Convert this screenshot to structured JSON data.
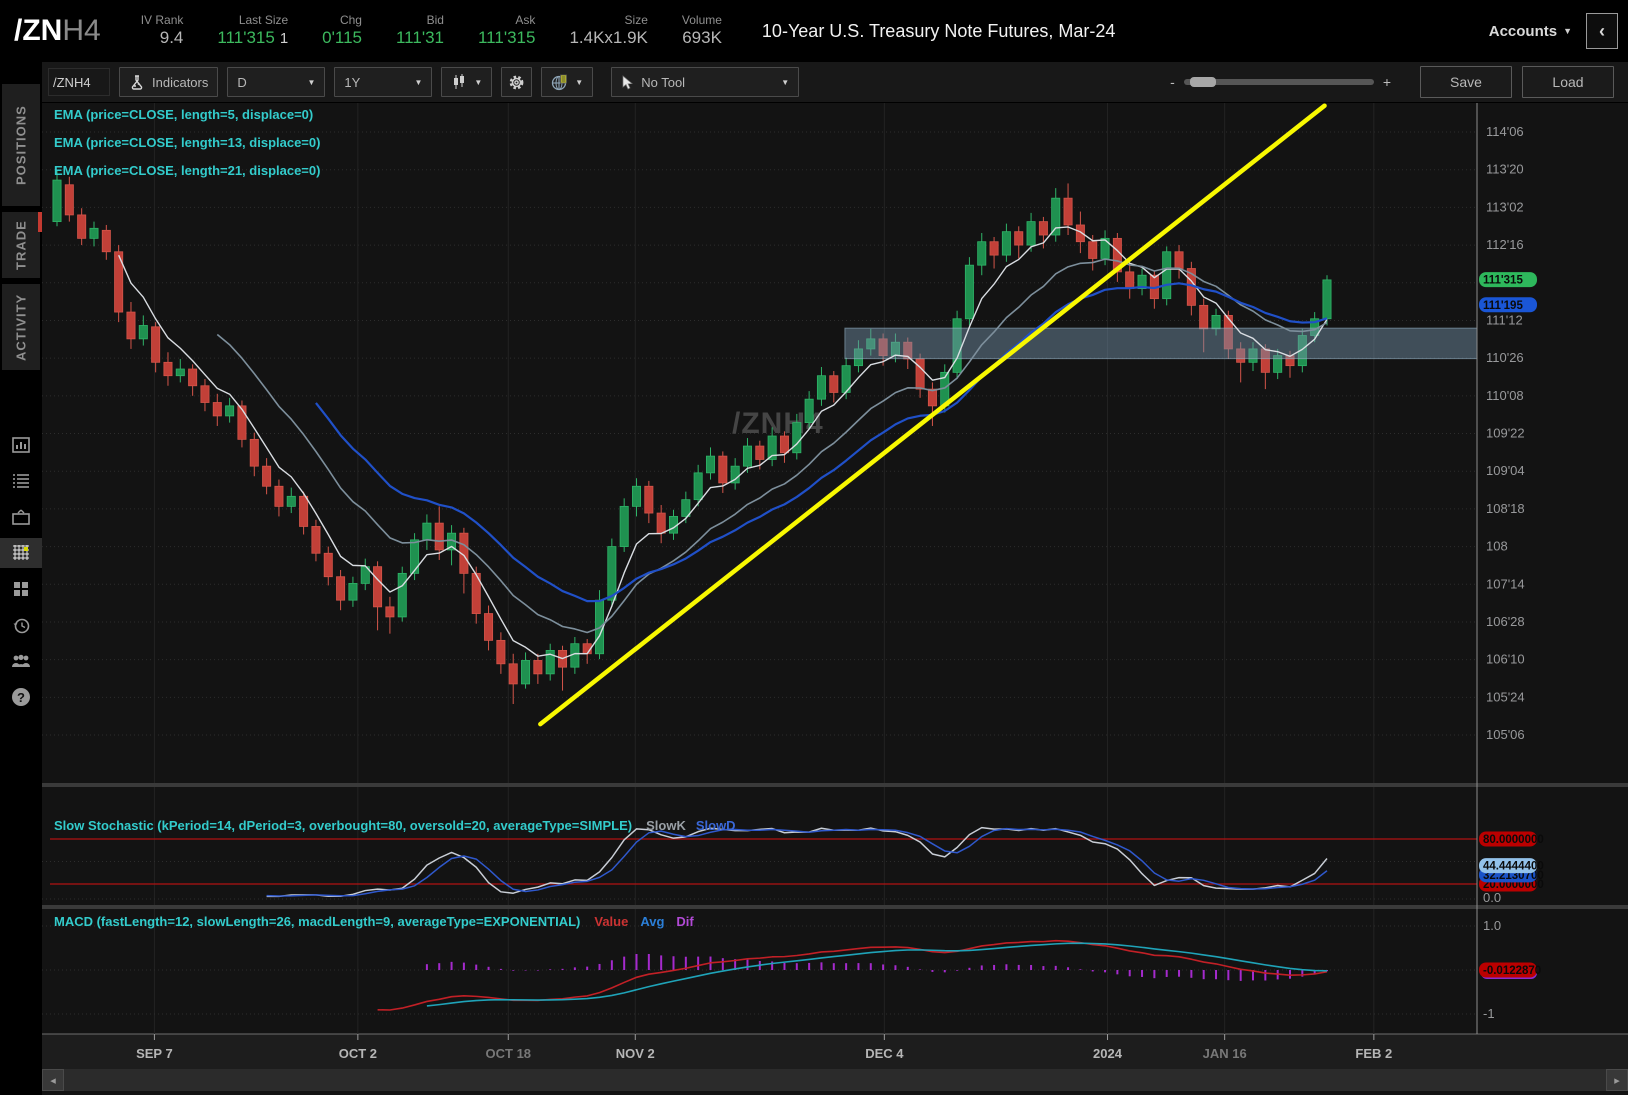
{
  "header": {
    "symbol": "/ZN",
    "symbol_suffix": "H4",
    "stats": [
      {
        "label": "IV Rank",
        "value": "9.4",
        "green": false
      },
      {
        "label": "Last Size",
        "value": "111'315",
        "extra": "1",
        "green": true
      },
      {
        "label": "Chg",
        "value": "0'115",
        "green": true
      },
      {
        "label": "Bid",
        "value": "111'31",
        "green": true
      },
      {
        "label": "Ask",
        "value": "111'315",
        "green": true
      },
      {
        "label": "Size",
        "value": "1.4Kx1.9K",
        "green": false
      },
      {
        "label": "Volume",
        "value": "693K",
        "green": false
      }
    ],
    "title": "10-Year U.S. Treasury Note Futures, Mar-24",
    "accounts_label": "Accounts",
    "collapse_glyph": "‹"
  },
  "sidebar": {
    "tabs": [
      "POSITIONS",
      "TRADE",
      "ACTIVITY"
    ],
    "help_glyph": "?"
  },
  "toolbar": {
    "symbol_input": "/ZNH4",
    "indicators_label": "Indicators",
    "timeframe": "D",
    "range": "1Y",
    "tool_label": "No Tool",
    "zoom_minus": "-",
    "zoom_plus": "+",
    "save_label": "Save",
    "load_label": "Load"
  },
  "scrollbar": {
    "left_glyph": "◂",
    "right_glyph": "▸"
  },
  "chart_data": {
    "type": "candlestick",
    "symbol": "/ZNH4",
    "watermark": "/ZNH4",
    "y_axis_min": 105.1875,
    "y_axis_max": 114.1875,
    "y_axis_step": 0.5625,
    "y_axis": [
      {
        "text": "114'06",
        "value": 114.1875
      },
      {
        "text": "113'20",
        "value": 113.625
      },
      {
        "text": "113'02",
        "value": 113.0625
      },
      {
        "text": "112'16",
        "value": 112.5
      },
      {
        "text": "111'12",
        "value": 111.375
      },
      {
        "text": "110'26",
        "value": 110.8125
      },
      {
        "text": "110'08",
        "value": 110.25
      },
      {
        "text": "109'22",
        "value": 109.6875
      },
      {
        "text": "109'04",
        "value": 109.125
      },
      {
        "text": "108'18",
        "value": 108.5625
      },
      {
        "text": "108",
        "value": 108.0
      },
      {
        "text": "107'14",
        "value": 107.4375
      },
      {
        "text": "106'28",
        "value": 106.875
      },
      {
        "text": "106'10",
        "value": 106.3125
      },
      {
        "text": "105'24",
        "value": 105.75
      },
      {
        "text": "105'06",
        "value": 105.1875
      }
    ],
    "x_labels": [
      {
        "text": "SEP 7",
        "i": 7.9,
        "dim": false
      },
      {
        "text": "OCT 2",
        "i": 24.4,
        "dim": false
      },
      {
        "text": "OCT 18",
        "i": 36.6,
        "dim": true
      },
      {
        "text": "NOV 2",
        "i": 46.9,
        "dim": false
      },
      {
        "text": "DEC 4",
        "i": 67.1,
        "dim": false
      },
      {
        "text": "2024",
        "i": 85.2,
        "dim": false
      },
      {
        "text": "JAN 16",
        "i": 94.7,
        "dim": true
      },
      {
        "text": "FEB 2",
        "i": 106.8,
        "dim": false
      }
    ],
    "last_price_badges": [
      {
        "text": "111'315",
        "value": 111.984,
        "bg": "#2eb85c"
      },
      {
        "text": "111'195",
        "value": 111.609,
        "bg": "#1a56d6"
      }
    ],
    "emas": [
      {
        "label": "EMA (price=CLOSE, length=5, displace=0)",
        "length": 5,
        "color": "#d9dde2",
        "width": 1.4
      },
      {
        "label": "EMA (price=CLOSE, length=13, displace=0)",
        "length": 13,
        "color": "#7d8f9c",
        "width": 1.6
      },
      {
        "label": "EMA (price=CLOSE, length=21, displace=0)",
        "length": 21,
        "color": "#2050c8",
        "width": 2.2
      }
    ],
    "stochastic": {
      "title": "Slow Stochastic (kPeriod=14, dPeriod=3, overbought=80, oversold=20, averageType=SIMPLE)",
      "k_label": "SlowK",
      "d_label": "SlowD",
      "overbought": 80,
      "oversold": 20,
      "badges": [
        {
          "text": "20.0000000",
          "value": 20,
          "bg": "#bb0000"
        },
        {
          "text": "32.2130700",
          "value": 32.213,
          "bg": "#1a53c8"
        },
        {
          "text": "44.4444400",
          "value": 44.444,
          "bg": "#93c2ea"
        },
        {
          "text": "80.0000000",
          "value": 80,
          "bg": "#bb0000"
        }
      ],
      "axis_zero": "0.0"
    },
    "macd": {
      "title": "MACD (fastLength=12, slowLength=26, macdLength=9, averageType=EXPONENTIAL)",
      "value_label": "Value",
      "avg_label": "Avg",
      "dif_label": "Dif",
      "axis_top": "1.0",
      "axis_bottom": "-1",
      "badge": {
        "text": "-0.0122870",
        "bg": "#bb0000"
      }
    },
    "annotations": {
      "trendline": {
        "i1": 39.2,
        "p1": 105.35,
        "i2": 102.8,
        "p2": 114.58,
        "color": "#f8f800"
      },
      "zone": {
        "i1": 63.9,
        "price_top": 111.26,
        "price_bottom": 110.805
      }
    },
    "candles": [
      [
        112.85,
        113.62,
        112.78,
        113.47
      ],
      [
        113.4,
        113.52,
        112.85,
        112.95
      ],
      [
        112.95,
        113.05,
        112.5,
        112.6
      ],
      [
        112.6,
        112.85,
        112.48,
        112.75
      ],
      [
        112.72,
        112.8,
        112.28,
        112.4
      ],
      [
        112.4,
        112.5,
        111.35,
        111.5
      ],
      [
        111.5,
        111.65,
        110.95,
        111.1
      ],
      [
        111.1,
        111.45,
        111.0,
        111.3
      ],
      [
        111.28,
        111.35,
        110.6,
        110.75
      ],
      [
        110.75,
        110.9,
        110.4,
        110.55
      ],
      [
        110.55,
        110.8,
        110.45,
        110.65
      ],
      [
        110.65,
        110.72,
        110.25,
        110.4
      ],
      [
        110.4,
        110.5,
        110.02,
        110.15
      ],
      [
        110.15,
        110.28,
        109.8,
        109.95
      ],
      [
        109.95,
        110.22,
        109.85,
        110.1
      ],
      [
        110.1,
        110.18,
        109.48,
        109.6
      ],
      [
        109.6,
        109.7,
        109.05,
        109.2
      ],
      [
        109.2,
        109.32,
        108.78,
        108.9
      ],
      [
        108.9,
        109.0,
        108.45,
        108.6
      ],
      [
        108.6,
        108.88,
        108.5,
        108.75
      ],
      [
        108.75,
        108.82,
        108.18,
        108.3
      ],
      [
        108.3,
        108.4,
        107.78,
        107.9
      ],
      [
        107.9,
        108.0,
        107.42,
        107.55
      ],
      [
        107.55,
        107.65,
        107.05,
        107.2
      ],
      [
        107.2,
        107.55,
        107.1,
        107.45
      ],
      [
        107.45,
        107.82,
        107.35,
        107.7
      ],
      [
        107.7,
        107.78,
        106.75,
        107.1
      ],
      [
        107.1,
        107.25,
        106.7,
        106.95
      ],
      [
        106.95,
        107.7,
        106.88,
        107.6
      ],
      [
        107.6,
        108.2,
        107.5,
        108.1
      ],
      [
        108.1,
        108.48,
        107.95,
        108.35
      ],
      [
        108.35,
        108.6,
        107.8,
        107.95
      ],
      [
        107.95,
        108.32,
        107.72,
        108.2
      ],
      [
        108.2,
        108.28,
        107.3,
        107.6
      ],
      [
        107.6,
        107.7,
        106.85,
        107.0
      ],
      [
        107.0,
        107.12,
        106.45,
        106.6
      ],
      [
        106.6,
        106.72,
        106.1,
        106.25
      ],
      [
        106.25,
        106.4,
        105.65,
        105.95
      ],
      [
        105.95,
        106.42,
        105.88,
        106.3
      ],
      [
        106.3,
        106.4,
        105.95,
        106.1
      ],
      [
        106.1,
        106.55,
        106.0,
        106.45
      ],
      [
        106.45,
        106.52,
        105.85,
        106.2
      ],
      [
        106.2,
        106.65,
        106.1,
        106.55
      ],
      [
        106.55,
        106.62,
        106.25,
        106.4
      ],
      [
        106.4,
        107.35,
        106.32,
        107.2
      ],
      [
        107.2,
        108.12,
        107.1,
        108.0
      ],
      [
        108.0,
        108.72,
        107.92,
        108.6
      ],
      [
        108.6,
        109.02,
        108.45,
        108.9
      ],
      [
        108.9,
        108.98,
        108.35,
        108.5
      ],
      [
        108.5,
        108.62,
        108.05,
        108.2
      ],
      [
        108.2,
        108.55,
        108.1,
        108.45
      ],
      [
        108.45,
        108.82,
        108.35,
        108.7
      ],
      [
        108.7,
        109.22,
        108.6,
        109.1
      ],
      [
        109.1,
        109.48,
        109.0,
        109.35
      ],
      [
        109.35,
        109.42,
        108.8,
        108.95
      ],
      [
        108.95,
        109.32,
        108.85,
        109.2
      ],
      [
        109.2,
        109.62,
        109.1,
        109.5
      ],
      [
        109.5,
        109.58,
        109.15,
        109.3
      ],
      [
        109.3,
        109.78,
        109.2,
        109.65
      ],
      [
        109.65,
        109.72,
        109.25,
        109.4
      ],
      [
        109.4,
        109.98,
        109.3,
        109.85
      ],
      [
        109.85,
        110.32,
        109.75,
        110.2
      ],
      [
        110.2,
        110.68,
        110.1,
        110.55
      ],
      [
        110.55,
        110.62,
        110.15,
        110.3
      ],
      [
        110.3,
        110.82,
        110.2,
        110.7
      ],
      [
        110.7,
        111.08,
        110.6,
        110.95
      ],
      [
        110.95,
        111.25,
        110.85,
        111.1
      ],
      [
        111.1,
        111.18,
        110.7,
        110.85
      ],
      [
        110.85,
        111.18,
        110.75,
        111.05
      ],
      [
        111.05,
        111.12,
        110.65,
        110.8
      ],
      [
        110.8,
        110.88,
        110.22,
        110.35
      ],
      [
        110.35,
        110.45,
        109.8,
        110.1
      ],
      [
        110.1,
        110.72,
        110.0,
        110.6
      ],
      [
        110.6,
        111.52,
        110.5,
        111.4
      ],
      [
        111.4,
        112.32,
        111.3,
        112.2
      ],
      [
        112.2,
        112.68,
        112.05,
        112.55
      ],
      [
        112.55,
        112.62,
        112.15,
        112.35
      ],
      [
        112.35,
        112.82,
        112.25,
        112.7
      ],
      [
        112.7,
        112.78,
        112.3,
        112.5
      ],
      [
        112.5,
        112.98,
        112.4,
        112.85
      ],
      [
        112.85,
        112.92,
        112.45,
        112.65
      ],
      [
        112.65,
        113.35,
        112.55,
        113.2
      ],
      [
        113.2,
        113.42,
        112.65,
        112.8
      ],
      [
        112.8,
        113.0,
        112.38,
        112.55
      ],
      [
        112.55,
        112.65,
        112.12,
        112.3
      ],
      [
        112.3,
        112.72,
        112.2,
        112.6
      ],
      [
        112.6,
        112.68,
        111.95,
        112.1
      ],
      [
        112.1,
        112.22,
        111.7,
        111.85
      ],
      [
        111.85,
        112.15,
        111.75,
        112.05
      ],
      [
        112.05,
        112.12,
        111.55,
        111.7
      ],
      [
        111.7,
        112.48,
        111.6,
        112.4
      ],
      [
        112.4,
        112.5,
        112.0,
        112.15
      ],
      [
        112.15,
        112.25,
        111.45,
        111.6
      ],
      [
        111.6,
        111.7,
        110.9,
        111.25
      ],
      [
        111.25,
        111.55,
        111.15,
        111.45
      ],
      [
        111.45,
        111.52,
        110.8,
        110.95
      ],
      [
        110.95,
        111.05,
        110.45,
        110.75
      ],
      [
        110.75,
        111.05,
        110.62,
        110.95
      ],
      [
        110.95,
        111.02,
        110.35,
        110.6
      ],
      [
        110.6,
        110.95,
        110.5,
        110.85
      ],
      [
        110.85,
        110.92,
        110.52,
        110.7
      ],
      [
        110.7,
        111.25,
        110.6,
        111.15
      ],
      [
        111.15,
        111.5,
        111.05,
        111.4
      ],
      [
        111.4,
        112.05,
        111.3,
        111.98
      ]
    ],
    "colors": {
      "up_fill": "#1f9150",
      "up_stroke": "#2fb468",
      "down_fill": "#c24038",
      "down_stroke": "#d4554a"
    }
  }
}
